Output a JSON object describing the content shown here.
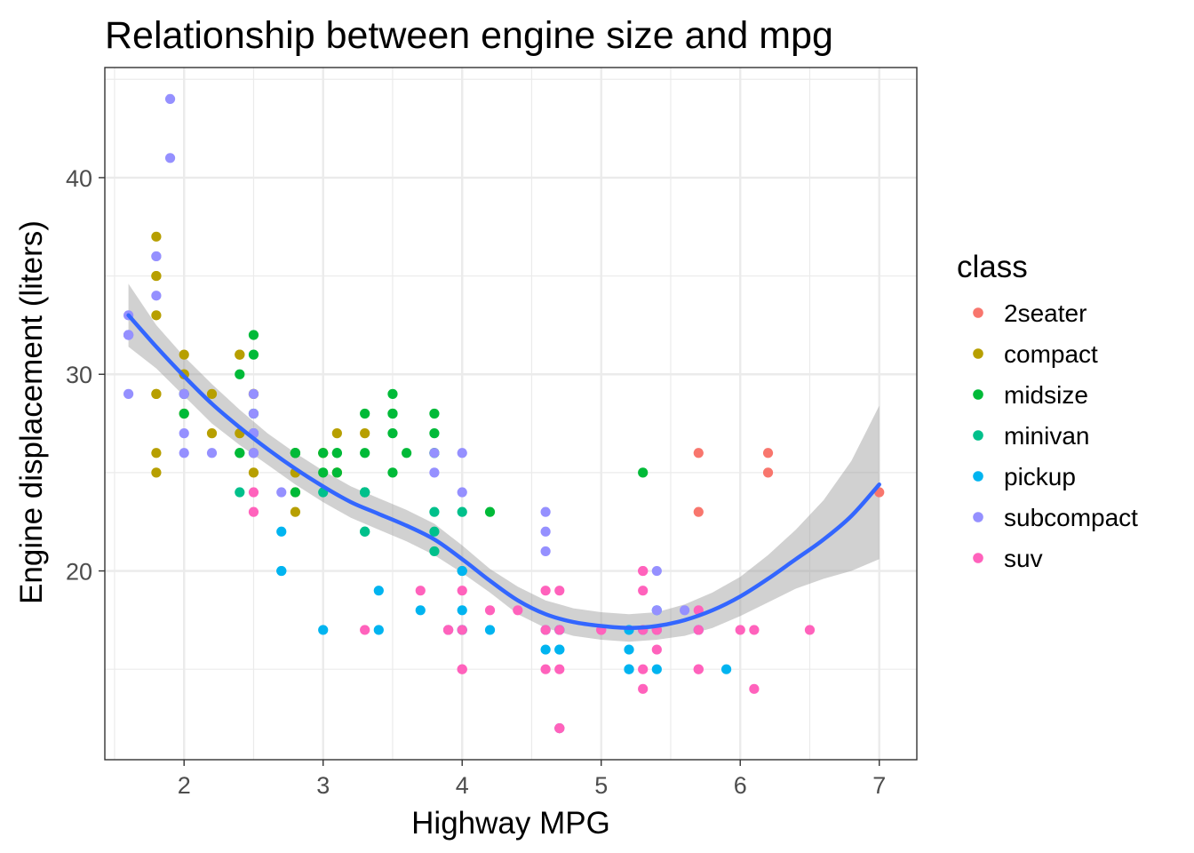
{
  "chart_data": {
    "type": "scatter",
    "title": "Relationship between engine size and mpg",
    "xlabel": "Highway MPG",
    "ylabel": "Engine displacement (liters)",
    "xlim": [
      1.43,
      7.27
    ],
    "ylim": [
      10.4,
      45.6
    ],
    "x_ticks": [
      2,
      3,
      4,
      5,
      6,
      7
    ],
    "y_ticks": [
      20,
      30,
      40
    ],
    "grid": true,
    "legend": {
      "title": "class",
      "position": "right"
    },
    "series": [
      {
        "name": "2seater",
        "color": "#F8766D",
        "points": [
          [
            5.7,
            26
          ],
          [
            5.7,
            23
          ],
          [
            6.2,
            26
          ],
          [
            6.2,
            25
          ],
          [
            7.0,
            24
          ]
        ]
      },
      {
        "name": "compact",
        "color": "#B79F00",
        "points": [
          [
            1.8,
            29
          ],
          [
            1.8,
            29
          ],
          [
            2.0,
            31
          ],
          [
            2.0,
            30
          ],
          [
            2.8,
            26
          ],
          [
            2.8,
            26
          ],
          [
            3.1,
            27
          ],
          [
            1.8,
            26
          ],
          [
            1.8,
            25
          ],
          [
            2.0,
            28
          ],
          [
            2.0,
            29
          ],
          [
            2.8,
            25
          ],
          [
            2.8,
            25
          ],
          [
            3.1,
            25
          ],
          [
            3.1,
            25
          ],
          [
            2.2,
            27
          ],
          [
            2.2,
            29
          ],
          [
            2.4,
            31
          ],
          [
            2.4,
            31
          ],
          [
            3.0,
            26
          ],
          [
            3.0,
            26
          ],
          [
            3.3,
            27
          ],
          [
            1.8,
            33
          ],
          [
            1.8,
            35
          ],
          [
            1.8,
            37
          ],
          [
            1.8,
            35
          ],
          [
            2.5,
            29
          ],
          [
            2.5,
            26
          ],
          [
            2.5,
            29
          ],
          [
            2.8,
            24
          ],
          [
            2.8,
            23
          ],
          [
            2.5,
            25
          ],
          [
            2.4,
            27
          ],
          [
            2.0,
            30
          ]
        ]
      },
      {
        "name": "midsize",
        "color": "#00BA38",
        "points": [
          [
            2.4,
            30
          ],
          [
            2.4,
            26
          ],
          [
            3.1,
            26
          ],
          [
            3.5,
            29
          ],
          [
            3.6,
            26
          ],
          [
            2.4,
            26
          ],
          [
            3.0,
            26
          ],
          [
            3.3,
            28
          ],
          [
            3.3,
            26
          ],
          [
            3.3,
            24
          ],
          [
            3.8,
            26
          ],
          [
            3.8,
            27
          ],
          [
            3.8,
            26
          ],
          [
            3.8,
            28
          ],
          [
            5.3,
            25
          ],
          [
            2.5,
            32
          ],
          [
            2.5,
            31
          ],
          [
            2.5,
            27
          ],
          [
            2.5,
            28
          ],
          [
            3.5,
            27
          ],
          [
            2.0,
            29
          ],
          [
            2.0,
            28
          ],
          [
            2.8,
            26
          ],
          [
            2.8,
            26
          ],
          [
            3.1,
            26
          ],
          [
            3.1,
            25
          ],
          [
            4.2,
            23
          ],
          [
            3.5,
            28
          ],
          [
            3.5,
            28
          ],
          [
            3.0,
            25
          ],
          [
            3.5,
            25
          ],
          [
            2.8,
            26
          ],
          [
            2.8,
            24
          ]
        ]
      },
      {
        "name": "minivan",
        "color": "#00C08B",
        "points": [
          [
            2.4,
            24
          ],
          [
            3.0,
            24
          ],
          [
            3.3,
            22
          ],
          [
            3.3,
            22
          ],
          [
            3.3,
            24
          ],
          [
            3.3,
            24
          ],
          [
            3.8,
            22
          ],
          [
            3.8,
            21
          ],
          [
            3.8,
            23
          ],
          [
            4.0,
            23
          ],
          [
            4.0,
            20
          ]
        ]
      },
      {
        "name": "pickup",
        "color": "#00B4F0",
        "points": [
          [
            2.7,
            20
          ],
          [
            2.7,
            20
          ],
          [
            2.7,
            22
          ],
          [
            3.0,
            17
          ],
          [
            3.7,
            18
          ],
          [
            4.7,
            17
          ],
          [
            4.7,
            16
          ],
          [
            4.7,
            16
          ],
          [
            5.2,
            15
          ],
          [
            5.2,
            15
          ],
          [
            3.9,
            17
          ],
          [
            4.7,
            17
          ],
          [
            4.7,
            12
          ],
          [
            5.2,
            17
          ],
          [
            5.7,
            17
          ],
          [
            5.9,
            15
          ],
          [
            4.6,
            16
          ],
          [
            5.4,
            17
          ],
          [
            5.4,
            15
          ],
          [
            4.0,
            17
          ],
          [
            4.0,
            18
          ],
          [
            4.0,
            20
          ],
          [
            3.4,
            19
          ],
          [
            3.4,
            17
          ],
          [
            4.0,
            17
          ],
          [
            4.2,
            17
          ],
          [
            4.6,
            17
          ],
          [
            5.2,
            16
          ],
          [
            5.3,
            17
          ],
          [
            5.4,
            18
          ]
        ]
      },
      {
        "name": "subcompact",
        "color": "#9590FF",
        "points": [
          [
            3.8,
            26
          ],
          [
            3.8,
            25
          ],
          [
            4.0,
            26
          ],
          [
            4.0,
            24
          ],
          [
            4.6,
            21
          ],
          [
            4.6,
            22
          ],
          [
            4.6,
            23
          ],
          [
            5.4,
            20
          ],
          [
            5.4,
            18
          ],
          [
            1.6,
            33
          ],
          [
            1.6,
            32
          ],
          [
            1.6,
            32
          ],
          [
            1.6,
            29
          ],
          [
            1.6,
            32
          ],
          [
            1.8,
            34
          ],
          [
            1.8,
            36
          ],
          [
            1.8,
            36
          ],
          [
            2.0,
            29
          ],
          [
            2.0,
            26
          ],
          [
            2.0,
            27
          ],
          [
            2.7,
            24
          ],
          [
            2.5,
            27
          ],
          [
            2.5,
            26
          ],
          [
            2.5,
            29
          ],
          [
            2.2,
            26
          ],
          [
            2.5,
            28
          ],
          [
            1.9,
            44
          ],
          [
            1.9,
            41
          ],
          [
            2.0,
            29
          ],
          [
            2.5,
            26
          ],
          [
            2.5,
            27
          ],
          [
            5.6,
            18
          ],
          [
            5.7,
            17
          ]
        ]
      },
      {
        "name": "suv",
        "color": "#FF62BC",
        "points": [
          [
            5.3,
            20
          ],
          [
            5.3,
            15
          ],
          [
            5.3,
            20
          ],
          [
            5.7,
            17
          ],
          [
            6.5,
            17
          ],
          [
            3.7,
            19
          ],
          [
            4.7,
            19
          ],
          [
            4.7,
            17
          ],
          [
            4.7,
            15
          ],
          [
            5.7,
            15
          ],
          [
            6.1,
            17
          ],
          [
            5.3,
            19
          ],
          [
            5.3,
            17
          ],
          [
            6.0,
            17
          ],
          [
            5.7,
            15
          ],
          [
            4.0,
            17
          ],
          [
            4.0,
            19
          ],
          [
            4.6,
            19
          ],
          [
            5.0,
            17
          ],
          [
            4.2,
            18
          ],
          [
            4.4,
            18
          ],
          [
            4.6,
            15
          ],
          [
            5.4,
            17
          ],
          [
            5.4,
            16
          ],
          [
            4.0,
            15
          ],
          [
            4.0,
            15
          ],
          [
            4.6,
            17
          ],
          [
            5.0,
            17
          ],
          [
            4.7,
            12
          ],
          [
            4.7,
            12
          ],
          [
            5.7,
            18
          ],
          [
            6.1,
            14
          ],
          [
            5.4,
            17
          ],
          [
            5.3,
            14
          ],
          [
            3.9,
            17
          ],
          [
            2.5,
            23
          ],
          [
            2.5,
            24
          ],
          [
            3.9,
            17
          ],
          [
            3.3,
            17
          ]
        ]
      }
    ],
    "smooth": {
      "method": "loess",
      "color": "#3366FF",
      "band_color": "#999999",
      "fit": [
        [
          1.6,
          33.0
        ],
        [
          1.8,
          31.4
        ],
        [
          2.0,
          29.9
        ],
        [
          2.2,
          28.5
        ],
        [
          2.4,
          27.3
        ],
        [
          2.6,
          26.2
        ],
        [
          2.8,
          25.2
        ],
        [
          3.0,
          24.3
        ],
        [
          3.2,
          23.5
        ],
        [
          3.4,
          22.9
        ],
        [
          3.6,
          22.3
        ],
        [
          3.8,
          21.6
        ],
        [
          4.0,
          20.6
        ],
        [
          4.2,
          19.5
        ],
        [
          4.4,
          18.5
        ],
        [
          4.6,
          17.8
        ],
        [
          4.8,
          17.4
        ],
        [
          5.0,
          17.2
        ],
        [
          5.2,
          17.1
        ],
        [
          5.4,
          17.2
        ],
        [
          5.6,
          17.5
        ],
        [
          5.8,
          18.0
        ],
        [
          6.0,
          18.7
        ],
        [
          6.2,
          19.6
        ],
        [
          6.4,
          20.6
        ],
        [
          6.6,
          21.6
        ],
        [
          6.8,
          22.8
        ],
        [
          7.0,
          24.4
        ]
      ],
      "upper": [
        [
          1.6,
          34.6
        ],
        [
          1.8,
          32.5
        ],
        [
          2.0,
          30.9
        ],
        [
          2.2,
          29.5
        ],
        [
          2.4,
          28.2
        ],
        [
          2.6,
          27.0
        ],
        [
          2.8,
          26.0
        ],
        [
          3.0,
          25.1
        ],
        [
          3.2,
          24.3
        ],
        [
          3.4,
          23.7
        ],
        [
          3.6,
          23.1
        ],
        [
          3.8,
          22.4
        ],
        [
          4.0,
          21.3
        ],
        [
          4.2,
          20.1
        ],
        [
          4.4,
          19.2
        ],
        [
          4.6,
          18.5
        ],
        [
          4.8,
          18.1
        ],
        [
          5.0,
          17.9
        ],
        [
          5.2,
          17.8
        ],
        [
          5.4,
          17.9
        ],
        [
          5.6,
          18.3
        ],
        [
          5.8,
          18.9
        ],
        [
          6.0,
          19.7
        ],
        [
          6.2,
          20.8
        ],
        [
          6.4,
          22.1
        ],
        [
          6.6,
          23.6
        ],
        [
          6.8,
          25.6
        ],
        [
          7.0,
          28.4
        ]
      ],
      "lower": [
        [
          1.6,
          31.4
        ],
        [
          1.8,
          30.3
        ],
        [
          2.0,
          28.9
        ],
        [
          2.2,
          27.5
        ],
        [
          2.4,
          26.4
        ],
        [
          2.6,
          25.4
        ],
        [
          2.8,
          24.4
        ],
        [
          3.0,
          23.5
        ],
        [
          3.2,
          22.7
        ],
        [
          3.4,
          22.1
        ],
        [
          3.6,
          21.5
        ],
        [
          3.8,
          20.8
        ],
        [
          4.0,
          19.9
        ],
        [
          4.2,
          18.9
        ],
        [
          4.4,
          17.8
        ],
        [
          4.6,
          17.1
        ],
        [
          4.8,
          16.7
        ],
        [
          5.0,
          16.5
        ],
        [
          5.2,
          16.4
        ],
        [
          5.4,
          16.5
        ],
        [
          5.6,
          16.7
        ],
        [
          5.8,
          17.1
        ],
        [
          6.0,
          17.7
        ],
        [
          6.2,
          18.4
        ],
        [
          6.4,
          19.1
        ],
        [
          6.6,
          19.6
        ],
        [
          6.8,
          20.0
        ],
        [
          7.0,
          20.6
        ]
      ]
    }
  }
}
